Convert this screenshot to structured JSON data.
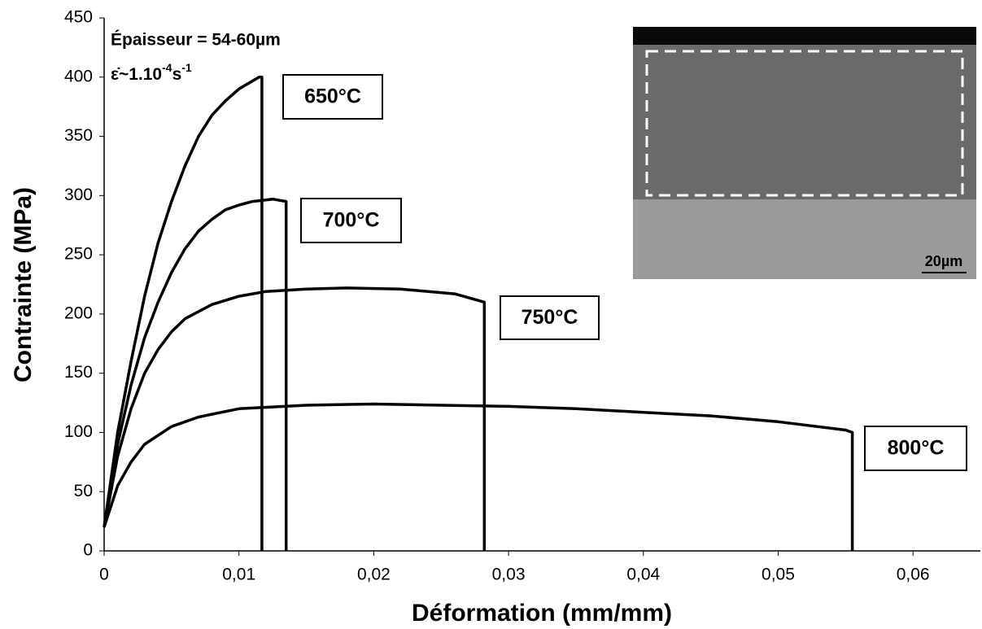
{
  "chart_data": {
    "type": "line",
    "xlabel": "Déformation (mm/mm)",
    "ylabel": "Contrainte (MPa)",
    "annotation": "Épaisseur = 54-60µm",
    "rate_annotation": [
      "ε̇",
      "~1.10",
      "-4",
      "s",
      "-1"
    ],
    "inset_scale_label": "20µm",
    "xlim": [
      0,
      0.065
    ],
    "ylim": [
      0,
      450
    ],
    "xticks": [
      0,
      {
        "value": 0.01,
        "label": "0,01"
      },
      {
        "value": 0.02,
        "label": "0,02"
      },
      {
        "value": 0.03,
        "label": "0,03"
      },
      {
        "value": 0.04,
        "label": "0,04"
      },
      {
        "value": 0.05,
        "label": "0,05"
      },
      {
        "value": 0.06,
        "label": "0,06"
      }
    ],
    "yticks": [
      0,
      50,
      100,
      150,
      200,
      250,
      300,
      350,
      400,
      450
    ],
    "grid": false,
    "series": [
      {
        "name": "650°C",
        "color": "#000000",
        "x": [
          0,
          0.001,
          0.002,
          0.003,
          0.004,
          0.005,
          0.006,
          0.007,
          0.008,
          0.009,
          0.01,
          0.0115,
          0.0117,
          0.0117
        ],
        "values": [
          20,
          100,
          160,
          215,
          260,
          295,
          325,
          350,
          368,
          380,
          390,
          400,
          400,
          0
        ]
      },
      {
        "name": "700°C",
        "color": "#000000",
        "x": [
          0,
          0.001,
          0.002,
          0.003,
          0.004,
          0.005,
          0.006,
          0.007,
          0.008,
          0.009,
          0.01,
          0.011,
          0.0125,
          0.0135,
          0.0135
        ],
        "values": [
          20,
          90,
          140,
          180,
          210,
          235,
          255,
          270,
          280,
          288,
          292,
          295,
          297,
          295,
          0
        ]
      },
      {
        "name": "750°C",
        "color": "#000000",
        "x": [
          0,
          0.001,
          0.002,
          0.003,
          0.004,
          0.005,
          0.006,
          0.008,
          0.01,
          0.012,
          0.015,
          0.018,
          0.022,
          0.026,
          0.0282,
          0.0282
        ],
        "values": [
          20,
          80,
          120,
          150,
          170,
          185,
          196,
          208,
          215,
          219,
          221,
          222,
          221,
          217,
          210,
          0
        ]
      },
      {
        "name": "800°C",
        "color": "#000000",
        "x": [
          0,
          0.001,
          0.002,
          0.003,
          0.005,
          0.007,
          0.01,
          0.015,
          0.02,
          0.025,
          0.03,
          0.035,
          0.04,
          0.045,
          0.05,
          0.055,
          0.0555,
          0.0555
        ],
        "values": [
          20,
          55,
          75,
          90,
          105,
          113,
          120,
          123,
          124,
          123,
          122,
          120,
          117,
          114,
          109,
          102,
          100,
          0
        ]
      }
    ]
  }
}
